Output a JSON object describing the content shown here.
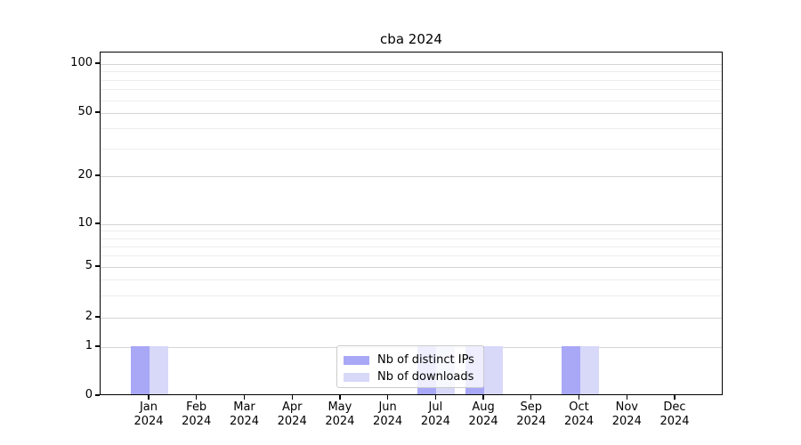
{
  "chart_data": {
    "type": "bar",
    "title": "cba 2024",
    "categories": [
      "Jan",
      "Feb",
      "Mar",
      "Apr",
      "May",
      "Jun",
      "Jul",
      "Aug",
      "Sep",
      "Oct",
      "Nov",
      "Dec"
    ],
    "year_label": "2024",
    "series": [
      {
        "name": "Nb of distinct IPs",
        "color": "#a8a8f7",
        "values": [
          1,
          0,
          0,
          0,
          0,
          0,
          1,
          1,
          0,
          1,
          0,
          0
        ]
      },
      {
        "name": "Nb of downloads",
        "color": "#d8d8f9",
        "values": [
          1,
          0,
          0,
          0,
          0,
          0,
          1,
          1,
          0,
          1,
          0,
          0
        ]
      }
    ],
    "xlabel": "",
    "ylabel": "",
    "ylim": [
      0,
      110
    ],
    "y_axis": {
      "scale": "symlog",
      "major_ticks": [
        0,
        1,
        2,
        5,
        10,
        20,
        50,
        100
      ],
      "minor_gridlines": [
        3,
        4,
        6,
        7,
        8,
        9,
        30,
        40,
        60,
        70,
        80,
        90
      ]
    },
    "grid": "on",
    "legend_position": "lower center"
  },
  "colors": {
    "axis": "#000000",
    "grid_major": "#d4d4d4",
    "grid_minor": "#ededed",
    "legend_border": "#cccccc",
    "background": "#ffffff"
  }
}
